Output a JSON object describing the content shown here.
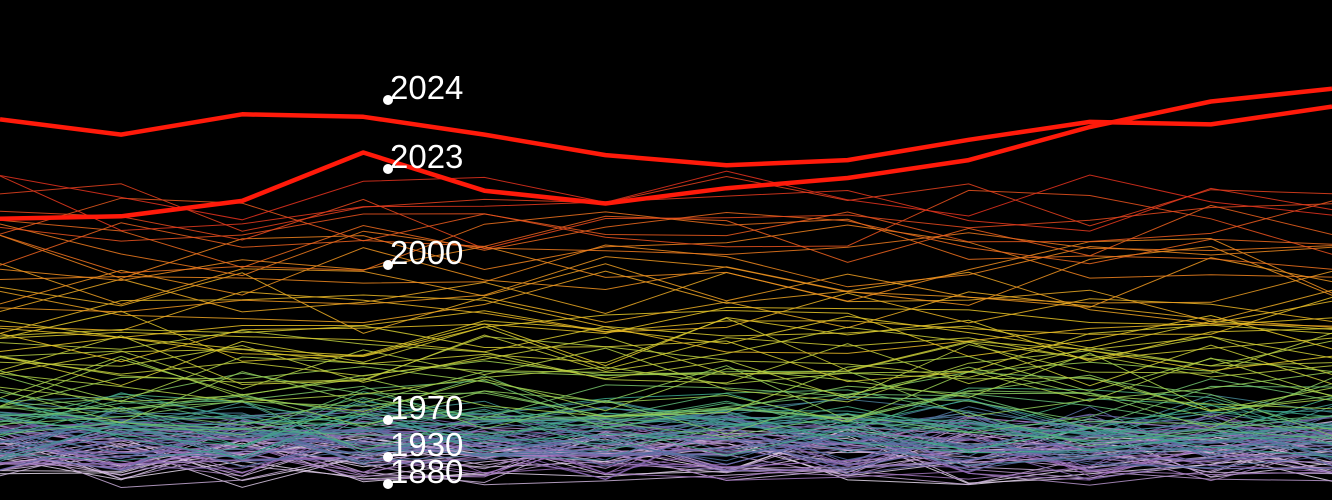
{
  "chart_data": {
    "type": "line",
    "title": "",
    "xlabel": "",
    "ylabel": "",
    "grid": false,
    "legend": "none",
    "highlight_color": "#ff1a0a",
    "annotations": [
      {
        "label": "2024",
        "year": 2024
      },
      {
        "label": "2023",
        "year": 2023
      },
      {
        "label": "2000",
        "year": 2000
      },
      {
        "label": "1970",
        "year": 1970
      },
      {
        "label": "1930",
        "year": 1930
      },
      {
        "label": "1880",
        "year": 1880
      }
    ],
    "series_highlighted": [
      {
        "year": 2023,
        "values": [
          0.99,
          1.0,
          1.06,
          1.25,
          1.1,
          1.05,
          1.11,
          1.15,
          1.22,
          1.35,
          1.45,
          1.5
        ]
      },
      {
        "year": 2024,
        "values": [
          1.38,
          1.32,
          1.4,
          1.39,
          1.32,
          1.24,
          1.2,
          1.22,
          1.3,
          1.37,
          1.36,
          1.43
        ]
      }
    ]
  }
}
